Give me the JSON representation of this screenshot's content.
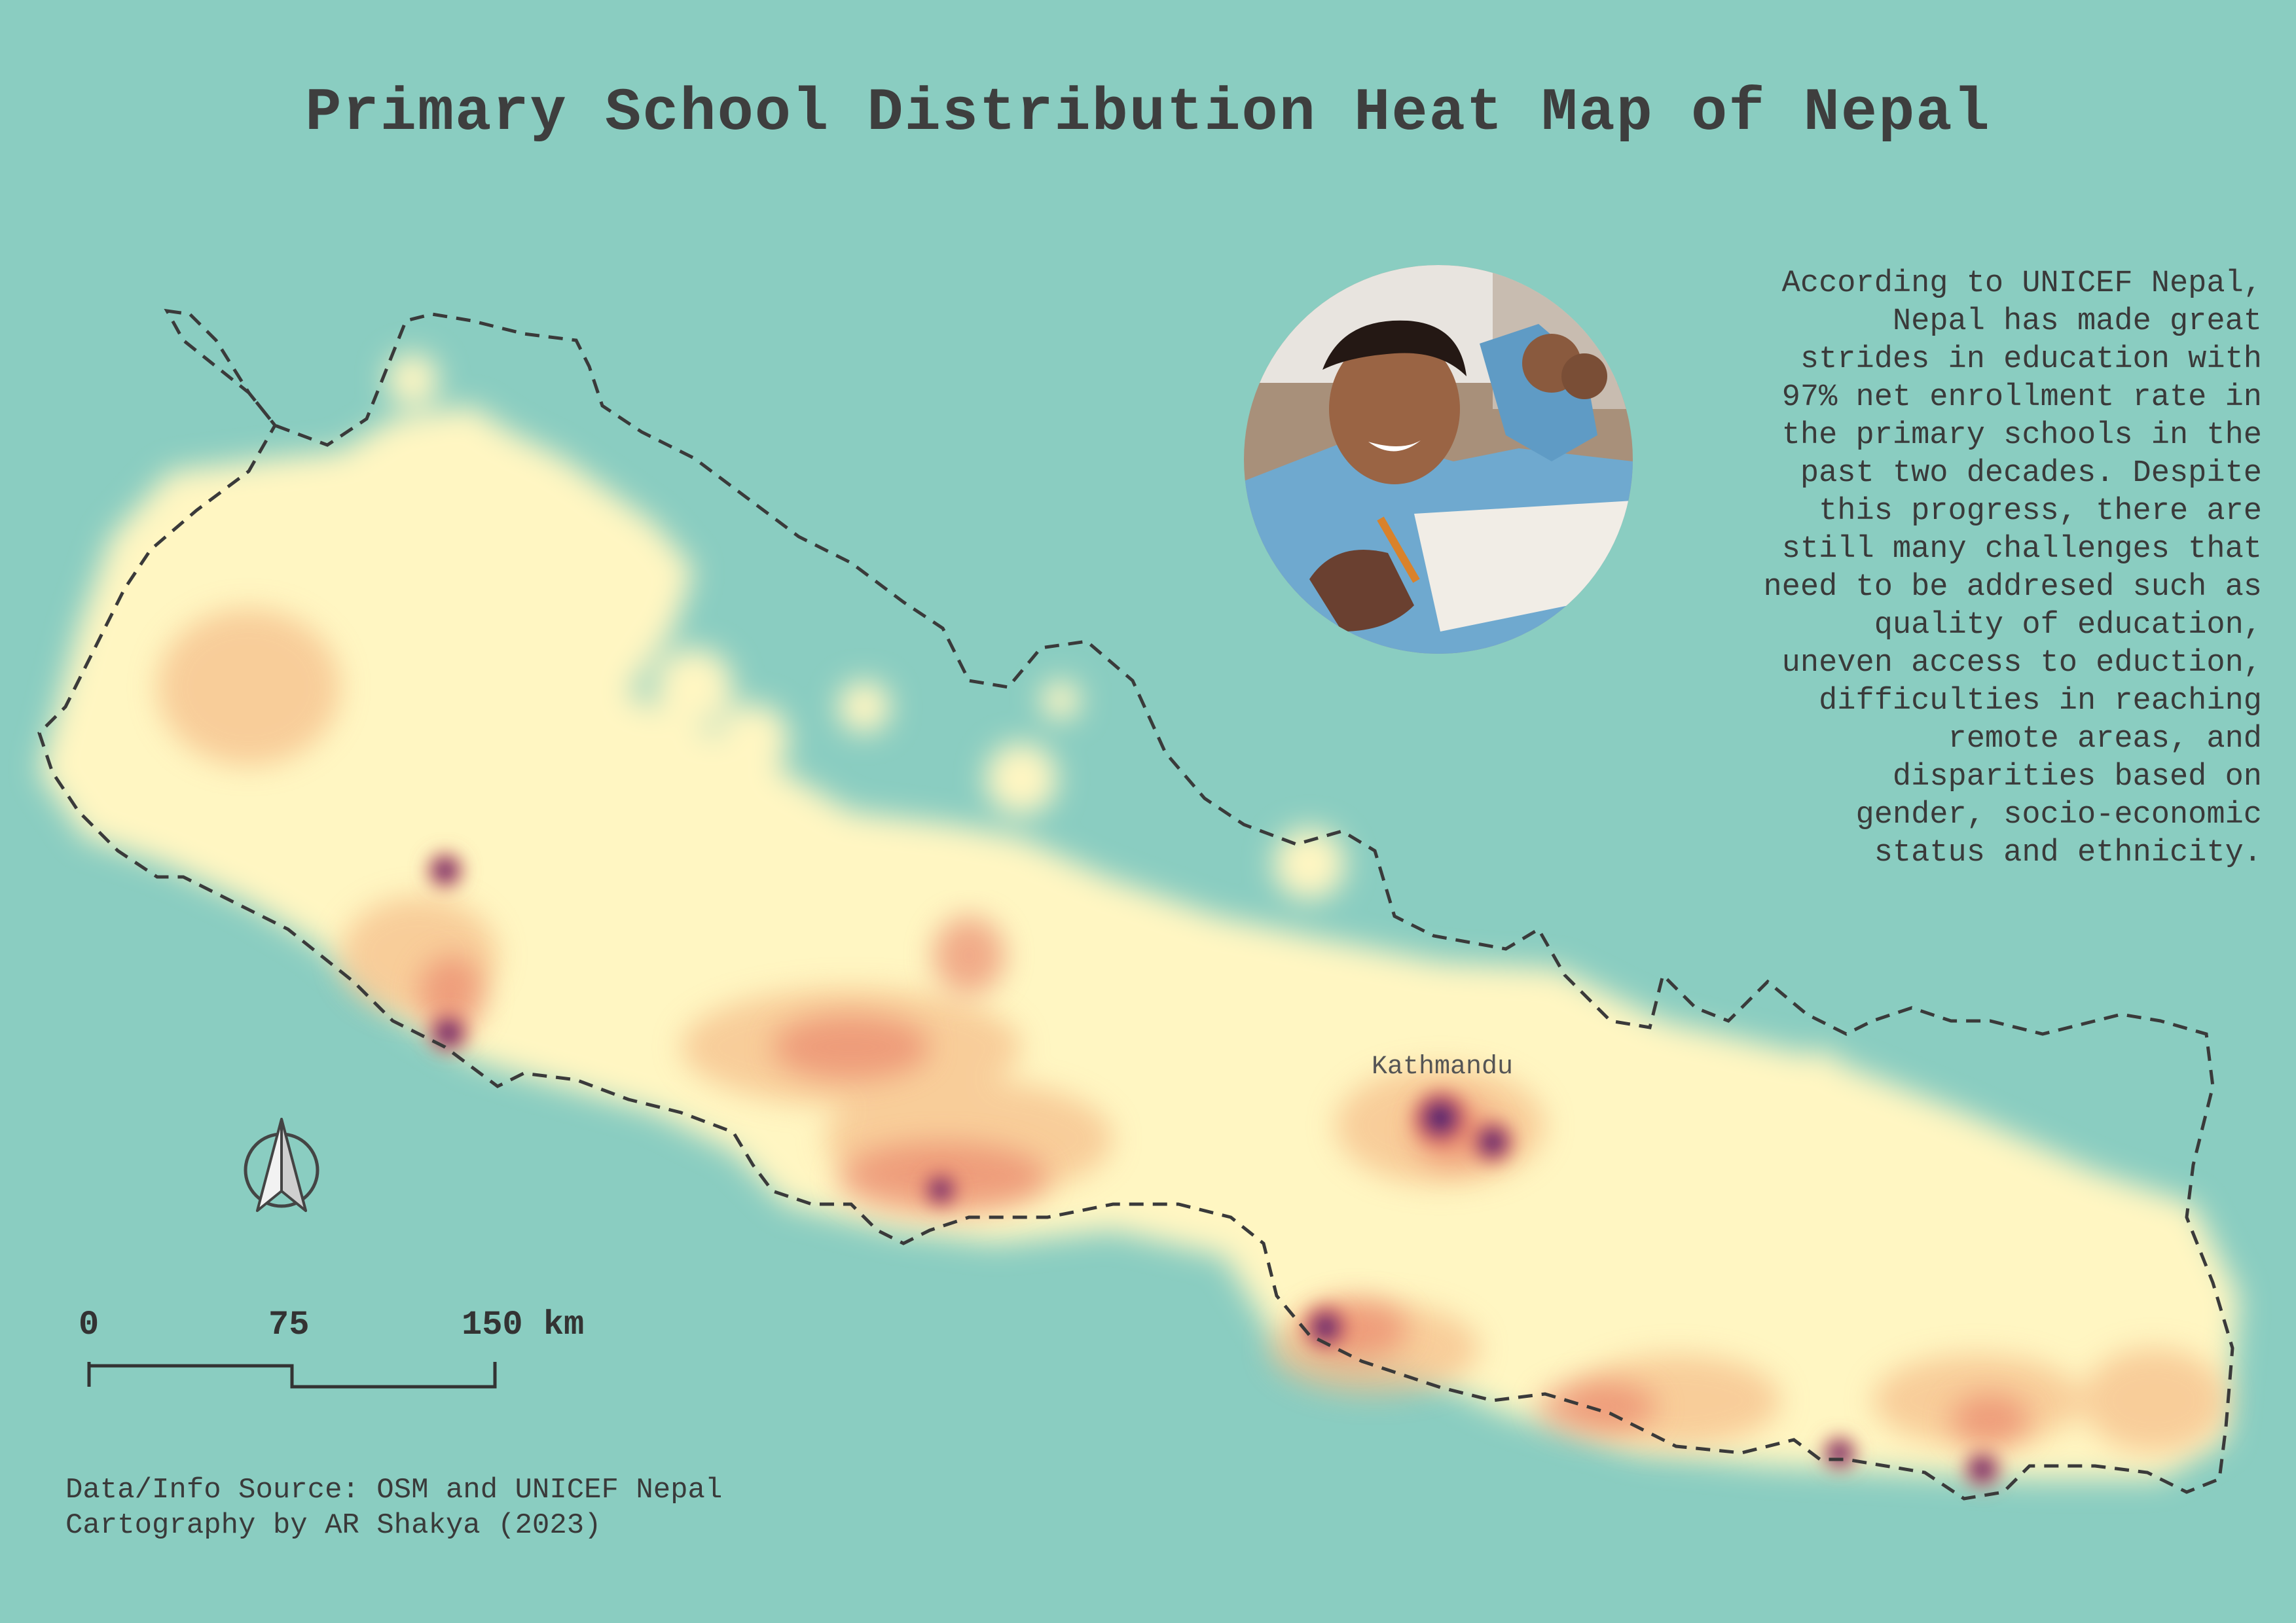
{
  "map": {
    "title": "Primary School Distribution Heat Map of Nepal",
    "city_label": "Kathmandu",
    "description": "According to UNICEF Nepal,\nNepal has made great\nstrides in education with\n97% net enrollment rate in\nthe primary schools in the\npast two decades. Despite\nthis progress, there are\nstill many challenges that\nneed to be addresed such as\nquality of education,\nuneven access to eduction,\ndifficulties in reaching\nremote areas, and\ndisparities based on\ngender, socio-economic\nstatus and ethnicity.",
    "scale_bar": {
      "labels": [
        "0",
        "75",
        "150 km"
      ]
    },
    "credits": {
      "source": "Data/Info Source: OSM and UNICEF Nepal",
      "author": "Cartography by AR Shakya (2023)"
    },
    "colors": {
      "background": "#8acdc1",
      "heat_low": "#fff7c4",
      "heat_mid": "#f5c08e",
      "heat_high": "#e8775e",
      "hotspot": "#3a1f6e",
      "border": "#333333"
    },
    "icons": [
      "north-arrow-icon"
    ]
  }
}
